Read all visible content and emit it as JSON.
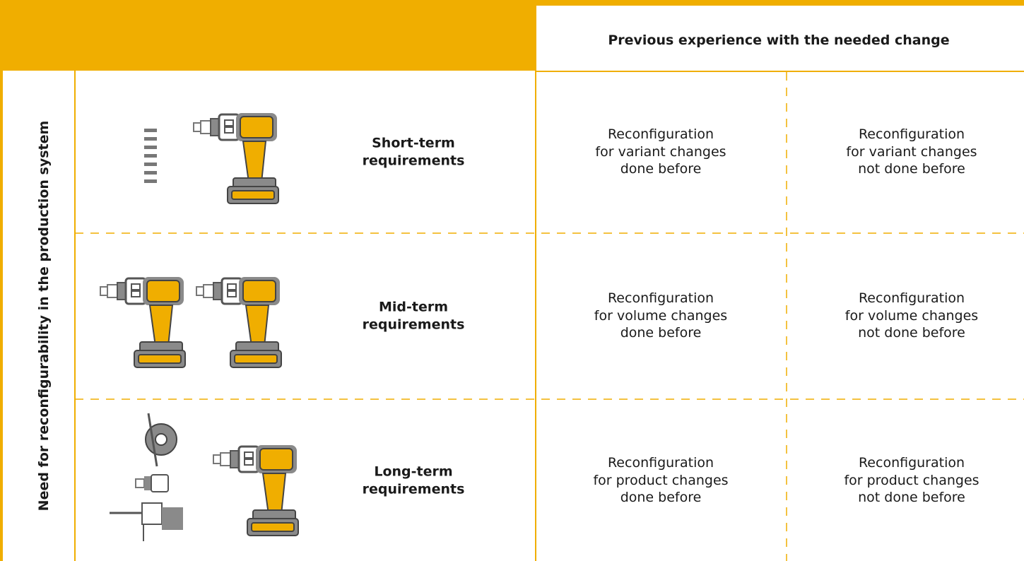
{
  "header": {
    "title": "Previous experience with the needed change"
  },
  "side_label": "Need for reconfigurability in the production system",
  "rows": [
    {
      "label": [
        "Short-term",
        "requirements"
      ],
      "cells": [
        [
          "Reconfiguration",
          "for variant changes",
          "done before"
        ],
        [
          "Reconfiguration",
          "for variant changes",
          "not done before"
        ]
      ]
    },
    {
      "label": [
        "Mid-term",
        "requirements"
      ],
      "cells": [
        [
          "Reconfiguration",
          "for volume changes",
          "done before"
        ],
        [
          "Reconfiguration",
          "for volume changes",
          "not done before"
        ]
      ]
    },
    {
      "label": [
        "Long-term",
        "requirements"
      ],
      "cells": [
        [
          "Reconfiguration",
          "for product changes",
          "done before"
        ],
        [
          "Reconfiguration",
          "for product changes",
          "not done before"
        ]
      ]
    }
  ]
}
